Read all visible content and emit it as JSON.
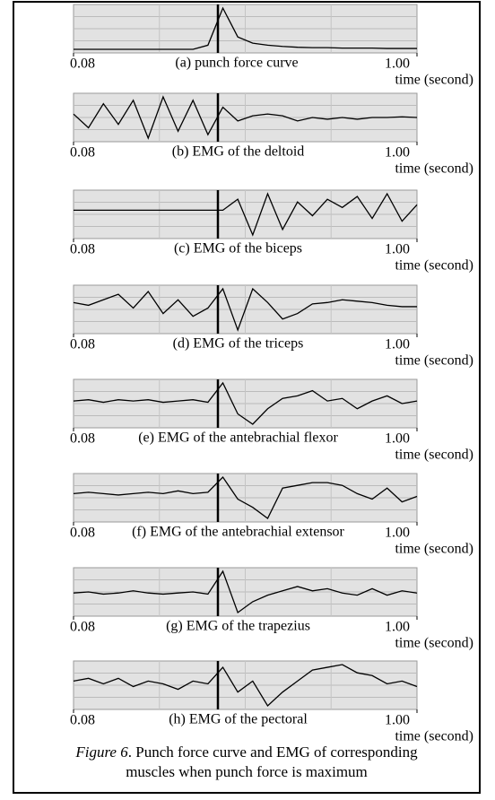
{
  "chart_data": [
    {
      "type": "line",
      "title": "(a) punch force curve",
      "xlabel": "time (second)",
      "xlim": [
        0.08,
        1
      ],
      "xticks": [
        0.08,
        {
          "value": 1,
          "label": "1.00"
        }
      ],
      "color": "#000000",
      "x": [
        0.08,
        0.12,
        0.16,
        0.2,
        0.24,
        0.28,
        0.32,
        0.36,
        0.4,
        0.44,
        0.48,
        0.52,
        0.56,
        0.6,
        0.64,
        0.68,
        0.72,
        0.76,
        0.8,
        0.84,
        0.88,
        0.92,
        0.96,
        1
      ],
      "values": [
        0,
        0,
        0,
        0,
        0,
        0,
        0,
        0,
        0,
        0.1,
        1,
        0.3,
        0.15,
        0.1,
        0.07,
        0.05,
        0.04,
        0.04,
        0.03,
        0.03,
        0.03,
        0.02,
        0.02,
        0.02
      ]
    },
    {
      "type": "line",
      "title": "(b) EMG of the deltoid",
      "xlabel": "time (second)",
      "xlim": [
        0.08,
        1
      ],
      "xticks": [
        0.08,
        {
          "value": 1,
          "label": "1.00"
        }
      ],
      "color": "#000000",
      "x": [
        0.08,
        0.12,
        0.16,
        0.2,
        0.24,
        0.28,
        0.32,
        0.36,
        0.4,
        0.44,
        0.48,
        0.52,
        0.56,
        0.6,
        0.64,
        0.68,
        0.72,
        0.76,
        0.8,
        0.84,
        0.88,
        0.92,
        0.96,
        1
      ],
      "values": [
        0.1,
        -0.3,
        0.4,
        -0.2,
        0.5,
        -0.6,
        0.6,
        -0.4,
        0.5,
        -0.5,
        0.3,
        -0.1,
        0.05,
        0.1,
        0.05,
        -0.1,
        0,
        -0.05,
        0,
        -0.05,
        0,
        0,
        0.02,
        0
      ]
    },
    {
      "type": "line",
      "title": "(c) EMG of the biceps",
      "xlabel": "time (second)",
      "xlim": [
        0.08,
        1
      ],
      "xticks": [
        0.08,
        {
          "value": 1,
          "label": "1.00"
        }
      ],
      "color": "#000000",
      "x": [
        0.08,
        0.12,
        0.16,
        0.2,
        0.24,
        0.28,
        0.32,
        0.36,
        0.4,
        0.44,
        0.48,
        0.52,
        0.56,
        0.6,
        0.64,
        0.68,
        0.72,
        0.76,
        0.8,
        0.84,
        0.88,
        0.92,
        0.96,
        1
      ],
      "values": [
        0,
        0,
        0,
        0,
        0,
        0,
        0,
        0,
        0,
        0,
        0,
        0.4,
        -0.9,
        0.6,
        -0.7,
        0.3,
        -0.2,
        0.4,
        0.1,
        0.5,
        -0.3,
        0.6,
        -0.4,
        0.2
      ]
    },
    {
      "type": "line",
      "title": "(d) EMG of the triceps",
      "xlabel": "time (second)",
      "xlim": [
        0.08,
        1
      ],
      "xticks": [
        0.08,
        {
          "value": 1,
          "label": "1.00"
        }
      ],
      "color": "#000000",
      "x": [
        0.08,
        0.12,
        0.16,
        0.2,
        0.24,
        0.28,
        0.32,
        0.36,
        0.4,
        0.44,
        0.48,
        0.52,
        0.56,
        0.6,
        0.64,
        0.68,
        0.72,
        0.76,
        0.8,
        0.84,
        0.88,
        0.92,
        0.96,
        1
      ],
      "values": [
        0.1,
        0,
        0.2,
        0.4,
        -0.1,
        0.5,
        -0.3,
        0.2,
        -0.4,
        -0.1,
        0.6,
        -0.9,
        0.6,
        0.1,
        -0.5,
        -0.3,
        0.05,
        0.1,
        0.2,
        0.15,
        0.1,
        0,
        -0.05,
        -0.05
      ]
    },
    {
      "type": "line",
      "title": "(e) EMG of the antebrachial flexor",
      "xlabel": "time (second)",
      "xlim": [
        0.08,
        1
      ],
      "xticks": [
        0.08,
        {
          "value": 1,
          "label": "1.00"
        }
      ],
      "color": "#000000",
      "x": [
        0.08,
        0.12,
        0.16,
        0.2,
        0.24,
        0.28,
        0.32,
        0.36,
        0.4,
        0.44,
        0.48,
        0.52,
        0.56,
        0.6,
        0.64,
        0.68,
        0.72,
        0.76,
        0.8,
        0.84,
        0.88,
        0.92,
        0.96,
        1
      ],
      "values": [
        0,
        0.05,
        -0.05,
        0.05,
        0,
        0.05,
        -0.05,
        0,
        0.05,
        -0.05,
        0.7,
        -0.5,
        -0.9,
        -0.3,
        0.1,
        0.2,
        0.4,
        0,
        0.1,
        -0.3,
        0,
        0.2,
        -0.1,
        0
      ]
    },
    {
      "type": "line",
      "title": "(f) EMG of the antebrachial extensor",
      "xlabel": "time (second)",
      "xlim": [
        0.08,
        1
      ],
      "xticks": [
        0.08,
        {
          "value": 1,
          "label": "1.00"
        }
      ],
      "color": "#000000",
      "x": [
        0.08,
        0.12,
        0.16,
        0.2,
        0.24,
        0.28,
        0.32,
        0.36,
        0.4,
        0.44,
        0.48,
        0.52,
        0.56,
        0.6,
        0.64,
        0.68,
        0.72,
        0.76,
        0.8,
        0.84,
        0.88,
        0.92,
        0.96,
        1
      ],
      "values": [
        0,
        0.05,
        0,
        -0.05,
        0,
        0.05,
        0,
        0.1,
        0,
        0.05,
        0.6,
        -0.2,
        -0.5,
        -0.9,
        0.2,
        0.3,
        0.4,
        0.4,
        0.3,
        0,
        -0.2,
        0.2,
        -0.3,
        -0.1
      ]
    },
    {
      "type": "line",
      "title": "(g)  EMG of the trapezius",
      "xlabel": "time (second)",
      "xlim": [
        0.08,
        1
      ],
      "xticks": [
        0.08,
        {
          "value": 1,
          "label": "1.00"
        }
      ],
      "color": "#000000",
      "x": [
        0.08,
        0.12,
        0.16,
        0.2,
        0.24,
        0.28,
        0.32,
        0.36,
        0.4,
        0.44,
        0.48,
        0.52,
        0.56,
        0.6,
        0.64,
        0.68,
        0.72,
        0.76,
        0.8,
        0.84,
        0.88,
        0.92,
        0.96,
        1
      ],
      "values": [
        0,
        0.05,
        -0.05,
        0,
        0.1,
        0,
        -0.05,
        0,
        0.05,
        -0.05,
        1,
        -0.9,
        -0.4,
        -0.1,
        0.1,
        0.3,
        0.1,
        0.2,
        0,
        -0.1,
        0.2,
        -0.1,
        0.1,
        0
      ]
    },
    {
      "type": "line",
      "title": "(h) EMG of the pectoral",
      "xlabel": "time (second)",
      "xlim": [
        0.08,
        1
      ],
      "xticks": [
        0.08,
        {
          "value": 1,
          "label": "1.00"
        }
      ],
      "color": "#000000",
      "x": [
        0.08,
        0.12,
        0.16,
        0.2,
        0.24,
        0.28,
        0.32,
        0.36,
        0.4,
        0.44,
        0.48,
        0.52,
        0.56,
        0.6,
        0.64,
        0.68,
        0.72,
        0.76,
        0.8,
        0.84,
        0.88,
        0.92,
        0.96,
        1
      ],
      "values": [
        0.1,
        0.2,
        0,
        0.2,
        -0.1,
        0.1,
        0,
        -0.2,
        0.1,
        0,
        0.6,
        -0.3,
        0.1,
        -0.8,
        -0.3,
        0.1,
        0.5,
        0.6,
        0.7,
        0.4,
        0.3,
        0,
        0.1,
        -0.1
      ]
    }
  ],
  "figure_label": "Figure 6",
  "caption": ". Punch force curve and EMG of corresponding muscles when punch force is maximum"
}
